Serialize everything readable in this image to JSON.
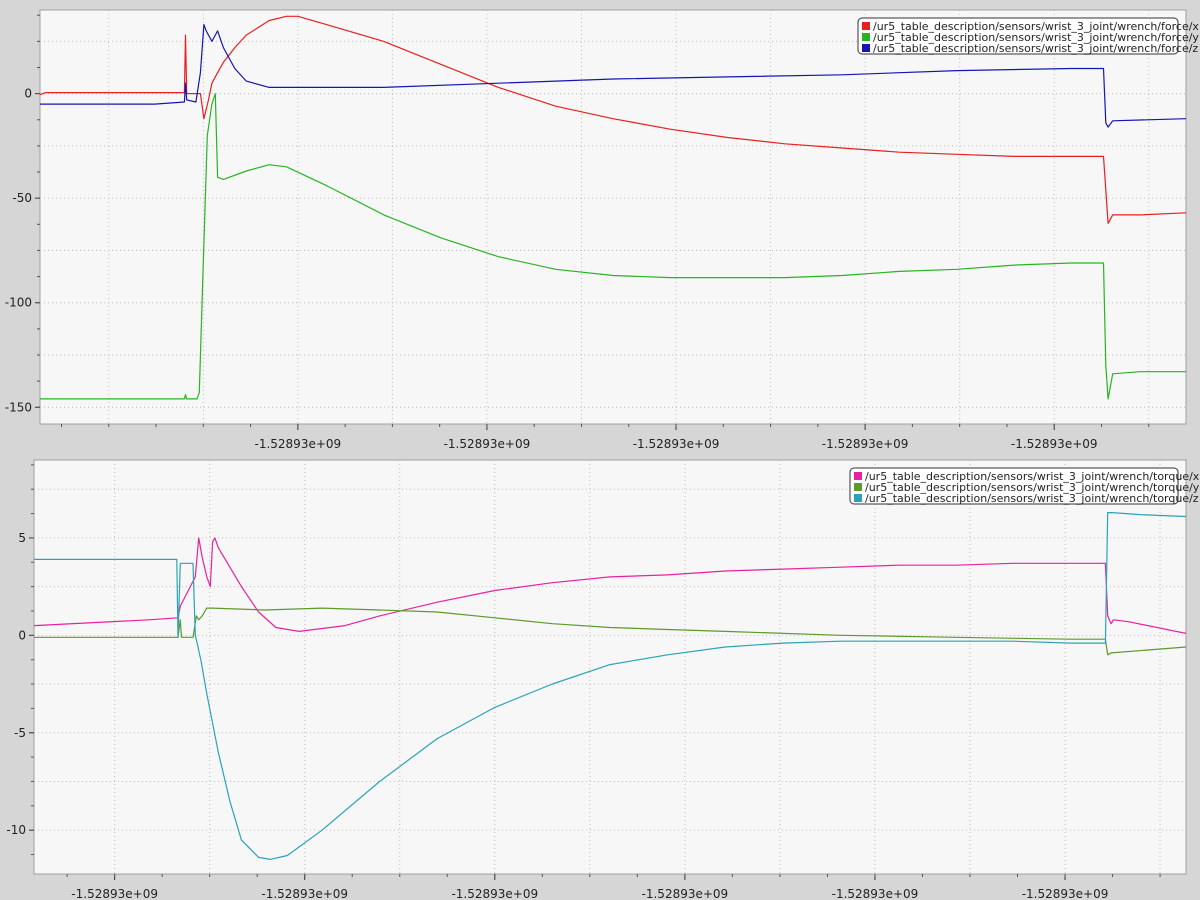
{
  "chart_data": [
    {
      "type": "line",
      "xlim": [
        0,
        1000
      ],
      "ylim": [
        -158,
        40
      ],
      "y_ticks": [
        0,
        -50,
        -100,
        -150
      ],
      "y_tick_labels": [
        "0",
        "-50",
        "-100",
        "-150"
      ],
      "x_ticks": [
        225,
        390,
        555,
        720,
        885,
        1050
      ],
      "x_tick_labels": [
        "-1.52893e+09",
        "-1.52893e+09",
        "-1.52893e+09",
        "-1.52893e+09",
        "-1.52893e+09",
        "-1.52893e+09"
      ],
      "grid": true,
      "legend_position": "top-right",
      "series": [
        {
          "name": "/ur5_table_description/sensors/wrist_3_joint/wrench/force/x",
          "color": "#e8201f",
          "points": [
            [
              0,
              -0.5
            ],
            [
              5,
              0.5
            ],
            [
              100,
              0.5
            ],
            [
              126,
              0.5
            ],
            [
              127,
              28
            ],
            [
              128,
              0
            ],
            [
              140,
              0
            ],
            [
              143,
              -12
            ],
            [
              147,
              -3
            ],
            [
              150,
              5
            ],
            [
              155,
              10
            ],
            [
              160,
              15
            ],
            [
              170,
              22
            ],
            [
              180,
              28
            ],
            [
              200,
              35
            ],
            [
              215,
              37
            ],
            [
              225,
              37
            ],
            [
              250,
              33
            ],
            [
              300,
              25
            ],
            [
              350,
              14
            ],
            [
              400,
              3
            ],
            [
              450,
              -6
            ],
            [
              500,
              -12
            ],
            [
              550,
              -17
            ],
            [
              600,
              -21
            ],
            [
              650,
              -24
            ],
            [
              700,
              -26
            ],
            [
              750,
              -28
            ],
            [
              800,
              -29
            ],
            [
              850,
              -30
            ],
            [
              900,
              -30
            ],
            [
              928,
              -30
            ],
            [
              932,
              -62
            ],
            [
              936,
              -58
            ],
            [
              960,
              -58
            ],
            [
              1000,
              -57
            ]
          ]
        },
        {
          "name": "/ur5_table_description/sensors/wrist_3_joint/wrench/force/y",
          "color": "#27b522",
          "points": [
            [
              0,
              -146
            ],
            [
              100,
              -146
            ],
            [
              126,
              -146
            ],
            [
              127,
              -144
            ],
            [
              128,
              -146
            ],
            [
              137,
              -146
            ],
            [
              139,
              -143
            ],
            [
              142,
              -90
            ],
            [
              146,
              -20
            ],
            [
              150,
              -5
            ],
            [
              153,
              0
            ],
            [
              155,
              -40
            ],
            [
              160,
              -41
            ],
            [
              180,
              -37
            ],
            [
              200,
              -34
            ],
            [
              215,
              -35
            ],
            [
              250,
              -44
            ],
            [
              300,
              -58
            ],
            [
              350,
              -69
            ],
            [
              400,
              -78
            ],
            [
              450,
              -84
            ],
            [
              500,
              -87
            ],
            [
              550,
              -88
            ],
            [
              600,
              -88
            ],
            [
              650,
              -88
            ],
            [
              700,
              -87
            ],
            [
              750,
              -85
            ],
            [
              800,
              -84
            ],
            [
              850,
              -82
            ],
            [
              900,
              -81
            ],
            [
              928,
              -81
            ],
            [
              930,
              -130
            ],
            [
              932,
              -146
            ],
            [
              936,
              -134
            ],
            [
              960,
              -133
            ],
            [
              1000,
              -133
            ]
          ]
        },
        {
          "name": "/ur5_table_description/sensors/wrist_3_joint/wrench/force/z",
          "color": "#1515b4",
          "points": [
            [
              0,
              -5
            ],
            [
              100,
              -5
            ],
            [
              126,
              -4
            ],
            [
              127,
              5
            ],
            [
              128,
              -3
            ],
            [
              136,
              -4
            ],
            [
              140,
              10
            ],
            [
              143,
              33
            ],
            [
              145,
              30
            ],
            [
              150,
              25
            ],
            [
              155,
              30
            ],
            [
              160,
              22
            ],
            [
              170,
              12
            ],
            [
              180,
              6
            ],
            [
              200,
              3
            ],
            [
              300,
              3
            ],
            [
              400,
              5
            ],
            [
              500,
              7
            ],
            [
              600,
              8
            ],
            [
              700,
              9
            ],
            [
              800,
              11
            ],
            [
              900,
              12
            ],
            [
              928,
              12
            ],
            [
              930,
              -14
            ],
            [
              932,
              -16
            ],
            [
              936,
              -13
            ],
            [
              1000,
              -12
            ]
          ]
        }
      ]
    },
    {
      "type": "line",
      "xlim": [
        0,
        1000
      ],
      "ylim": [
        -12.25,
        9
      ],
      "y_ticks": [
        5,
        0,
        -5,
        -10
      ],
      "y_tick_labels": [
        "5",
        "0",
        "-5",
        "-10"
      ],
      "x_ticks": [
        70,
        235,
        400,
        565,
        730,
        895,
        1060
      ],
      "x_tick_labels": [
        "-1.52893e+09",
        "-1.52893e+09",
        "-1.52893e+09",
        "-1.52893e+09",
        "-1.52893e+09",
        "-1.52893e+09",
        "-1.52893e+09"
      ],
      "grid": true,
      "legend_position": "top-right",
      "series": [
        {
          "name": "/ur5_table_description/sensors/wrist_3_joint/wrench/torque/x",
          "color": "#e8219e",
          "points": [
            [
              0,
              0.5
            ],
            [
              100,
              0.8
            ],
            [
              125,
              0.9
            ],
            [
              127,
              1.5
            ],
            [
              140,
              3
            ],
            [
              143,
              5
            ],
            [
              146,
              4
            ],
            [
              150,
              3
            ],
            [
              153,
              2.5
            ],
            [
              155,
              4.8
            ],
            [
              157,
              5
            ],
            [
              160,
              4.5
            ],
            [
              180,
              2.5
            ],
            [
              195,
              1.2
            ],
            [
              210,
              0.4
            ],
            [
              230,
              0.2
            ],
            [
              270,
              0.5
            ],
            [
              300,
              1
            ],
            [
              350,
              1.7
            ],
            [
              400,
              2.3
            ],
            [
              450,
              2.7
            ],
            [
              500,
              3
            ],
            [
              550,
              3.1
            ],
            [
              600,
              3.3
            ],
            [
              650,
              3.4
            ],
            [
              700,
              3.5
            ],
            [
              750,
              3.6
            ],
            [
              800,
              3.6
            ],
            [
              850,
              3.7
            ],
            [
              900,
              3.7
            ],
            [
              930,
              3.7
            ],
            [
              932,
              1
            ],
            [
              935,
              0.6
            ],
            [
              937,
              0.8
            ],
            [
              950,
              0.7
            ],
            [
              1000,
              0.1
            ]
          ]
        },
        {
          "name": "/ur5_table_description/sensors/wrist_3_joint/wrench/torque/y",
          "color": "#5e9a2b",
          "points": [
            [
              0,
              -0.1
            ],
            [
              100,
              -0.1
            ],
            [
              125,
              -0.1
            ],
            [
              127,
              0.8
            ],
            [
              128,
              -0.1
            ],
            [
              138,
              -0.1
            ],
            [
              141,
              1
            ],
            [
              143,
              0.8
            ],
            [
              146,
              1
            ],
            [
              150,
              1.4
            ],
            [
              155,
              1.4
            ],
            [
              200,
              1.3
            ],
            [
              250,
              1.4
            ],
            [
              300,
              1.3
            ],
            [
              350,
              1.2
            ],
            [
              400,
              0.9
            ],
            [
              450,
              0.6
            ],
            [
              500,
              0.4
            ],
            [
              550,
              0.3
            ],
            [
              600,
              0.2
            ],
            [
              700,
              0
            ],
            [
              800,
              -0.1
            ],
            [
              900,
              -0.2
            ],
            [
              930,
              -0.2
            ],
            [
              932,
              -1
            ],
            [
              935,
              -0.9
            ],
            [
              1000,
              -0.6
            ]
          ]
        },
        {
          "name": "/ur5_table_description/sensors/wrist_3_joint/wrench/torque/z",
          "color": "#2aa3b8",
          "points": [
            [
              0,
              3.9
            ],
            [
              120,
              3.9
            ],
            [
              124,
              3.9
            ],
            [
              125,
              -0.1
            ],
            [
              127,
              3.7
            ],
            [
              138,
              3.7
            ],
            [
              140,
              0
            ],
            [
              142,
              -0.5
            ],
            [
              145,
              -1.3
            ],
            [
              150,
              -3
            ],
            [
              160,
              -6
            ],
            [
              170,
              -8.5
            ],
            [
              180,
              -10.5
            ],
            [
              195,
              -11.4
            ],
            [
              205,
              -11.5
            ],
            [
              220,
              -11.3
            ],
            [
              250,
              -10
            ],
            [
              300,
              -7.5
            ],
            [
              350,
              -5.3
            ],
            [
              400,
              -3.7
            ],
            [
              450,
              -2.5
            ],
            [
              500,
              -1.5
            ],
            [
              550,
              -1
            ],
            [
              600,
              -0.6
            ],
            [
              650,
              -0.4
            ],
            [
              700,
              -0.3
            ],
            [
              750,
              -0.3
            ],
            [
              800,
              -0.3
            ],
            [
              850,
              -0.3
            ],
            [
              900,
              -0.4
            ],
            [
              930,
              -0.4
            ],
            [
              932,
              6.3
            ],
            [
              936,
              6.3
            ],
            [
              960,
              6.2
            ],
            [
              1000,
              6.1
            ]
          ]
        }
      ]
    }
  ]
}
